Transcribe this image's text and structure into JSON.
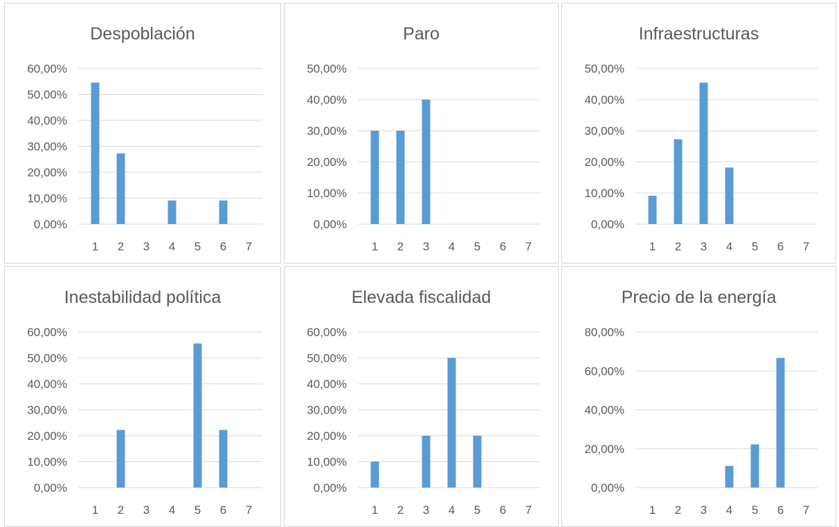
{
  "colors": {
    "bar": "#5b9bd5",
    "grid": "#d9d9d9",
    "text": "#595959",
    "border": "#d4d4d4"
  },
  "chart_data": [
    {
      "type": "bar",
      "title": "Despoblación",
      "categories": [
        "1",
        "2",
        "3",
        "4",
        "5",
        "6",
        "7"
      ],
      "values": [
        54.55,
        27.27,
        0,
        9.09,
        0,
        9.09,
        0
      ],
      "ylim": [
        0,
        60
      ],
      "yticks": [
        "0,00%",
        "10,00%",
        "20,00%",
        "30,00%",
        "40,00%",
        "50,00%",
        "60,00%"
      ],
      "xlabel": "",
      "ylabel": "",
      "grid": true,
      "legend": "none"
    },
    {
      "type": "bar",
      "title": "Paro",
      "categories": [
        "1",
        "2",
        "3",
        "4",
        "5",
        "6",
        "7"
      ],
      "values": [
        30,
        30,
        40,
        0,
        0,
        0,
        0
      ],
      "ylim": [
        0,
        50
      ],
      "yticks": [
        "0,00%",
        "10,00%",
        "20,00%",
        "30,00%",
        "40,00%",
        "50,00%"
      ],
      "xlabel": "",
      "ylabel": "",
      "grid": true,
      "legend": "none"
    },
    {
      "type": "bar",
      "title": "Infraestructuras",
      "categories": [
        "1",
        "2",
        "3",
        "4",
        "5",
        "6",
        "7"
      ],
      "values": [
        9.09,
        27.27,
        45.45,
        18.18,
        0,
        0,
        0
      ],
      "ylim": [
        0,
        50
      ],
      "yticks": [
        "0,00%",
        "10,00%",
        "20,00%",
        "30,00%",
        "40,00%",
        "50,00%"
      ],
      "xlabel": "",
      "ylabel": "",
      "grid": true,
      "legend": "none"
    },
    {
      "type": "bar",
      "title": "Inestabilidad política",
      "categories": [
        "1",
        "2",
        "3",
        "4",
        "5",
        "6",
        "7"
      ],
      "values": [
        0,
        22.22,
        0,
        0,
        55.56,
        22.22,
        0
      ],
      "ylim": [
        0,
        60
      ],
      "yticks": [
        "0,00%",
        "10,00%",
        "20,00%",
        "30,00%",
        "40,00%",
        "50,00%",
        "60,00%"
      ],
      "xlabel": "",
      "ylabel": "",
      "grid": true,
      "legend": "none"
    },
    {
      "type": "bar",
      "title": "Elevada fiscalidad",
      "categories": [
        "1",
        "2",
        "3",
        "4",
        "5",
        "6",
        "7"
      ],
      "values": [
        10,
        0,
        20,
        50,
        20,
        0,
        0
      ],
      "ylim": [
        0,
        60
      ],
      "yticks": [
        "0,00%",
        "10,00%",
        "20,00%",
        "30,00%",
        "40,00%",
        "50,00%",
        "60,00%"
      ],
      "xlabel": "",
      "ylabel": "",
      "grid": true,
      "legend": "none"
    },
    {
      "type": "bar",
      "title": "Precio de la energía",
      "categories": [
        "1",
        "2",
        "3",
        "4",
        "5",
        "6",
        "7"
      ],
      "values": [
        0,
        0,
        0,
        11.11,
        22.22,
        66.67,
        0
      ],
      "ylim": [
        0,
        80
      ],
      "yticks": [
        "0,00%",
        "20,00%",
        "40,00%",
        "60,00%",
        "80,00%"
      ],
      "xlabel": "",
      "ylabel": "",
      "grid": true,
      "legend": "none"
    }
  ]
}
